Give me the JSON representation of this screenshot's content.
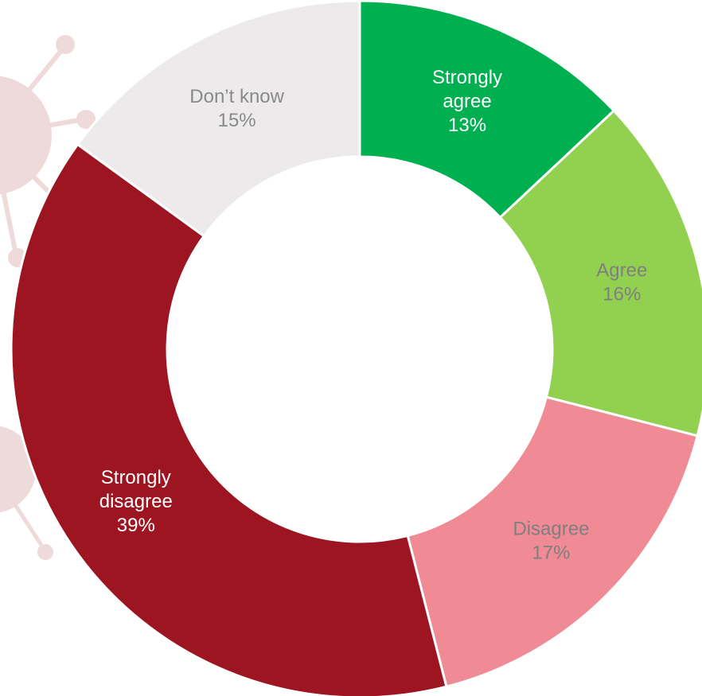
{
  "chart_data": {
    "type": "pie",
    "variant": "donut",
    "title": "",
    "slices": [
      {
        "label": "Strongly agree",
        "lines": [
          "Strongly",
          "agree"
        ],
        "value": 13,
        "value_label": "13%",
        "color": "#00b050",
        "text_color": "#ffffff"
      },
      {
        "label": "Agree",
        "lines": [
          "Agree"
        ],
        "value": 16,
        "value_label": "16%",
        "color": "#92d050",
        "text_color": "#7f7f7f"
      },
      {
        "label": "Disagree",
        "lines": [
          "Disagree"
        ],
        "value": 17,
        "value_label": "17%",
        "color": "#f08a94",
        "text_color": "#7f7f7f"
      },
      {
        "label": "Strongly disagree",
        "lines": [
          "Strongly",
          "disagree"
        ],
        "value": 39,
        "value_label": "39%",
        "color": "#9e1522",
        "text_color": "#ffffff"
      },
      {
        "label": "Don’t know",
        "lines": [
          "Don’t know"
        ],
        "value": 15,
        "value_label": "15%",
        "color": "#edeaec",
        "text_color": "#8a8a8a"
      }
    ]
  },
  "decoration": {
    "background_icon": "virus-icon",
    "icon_color": "#b55a5a"
  }
}
